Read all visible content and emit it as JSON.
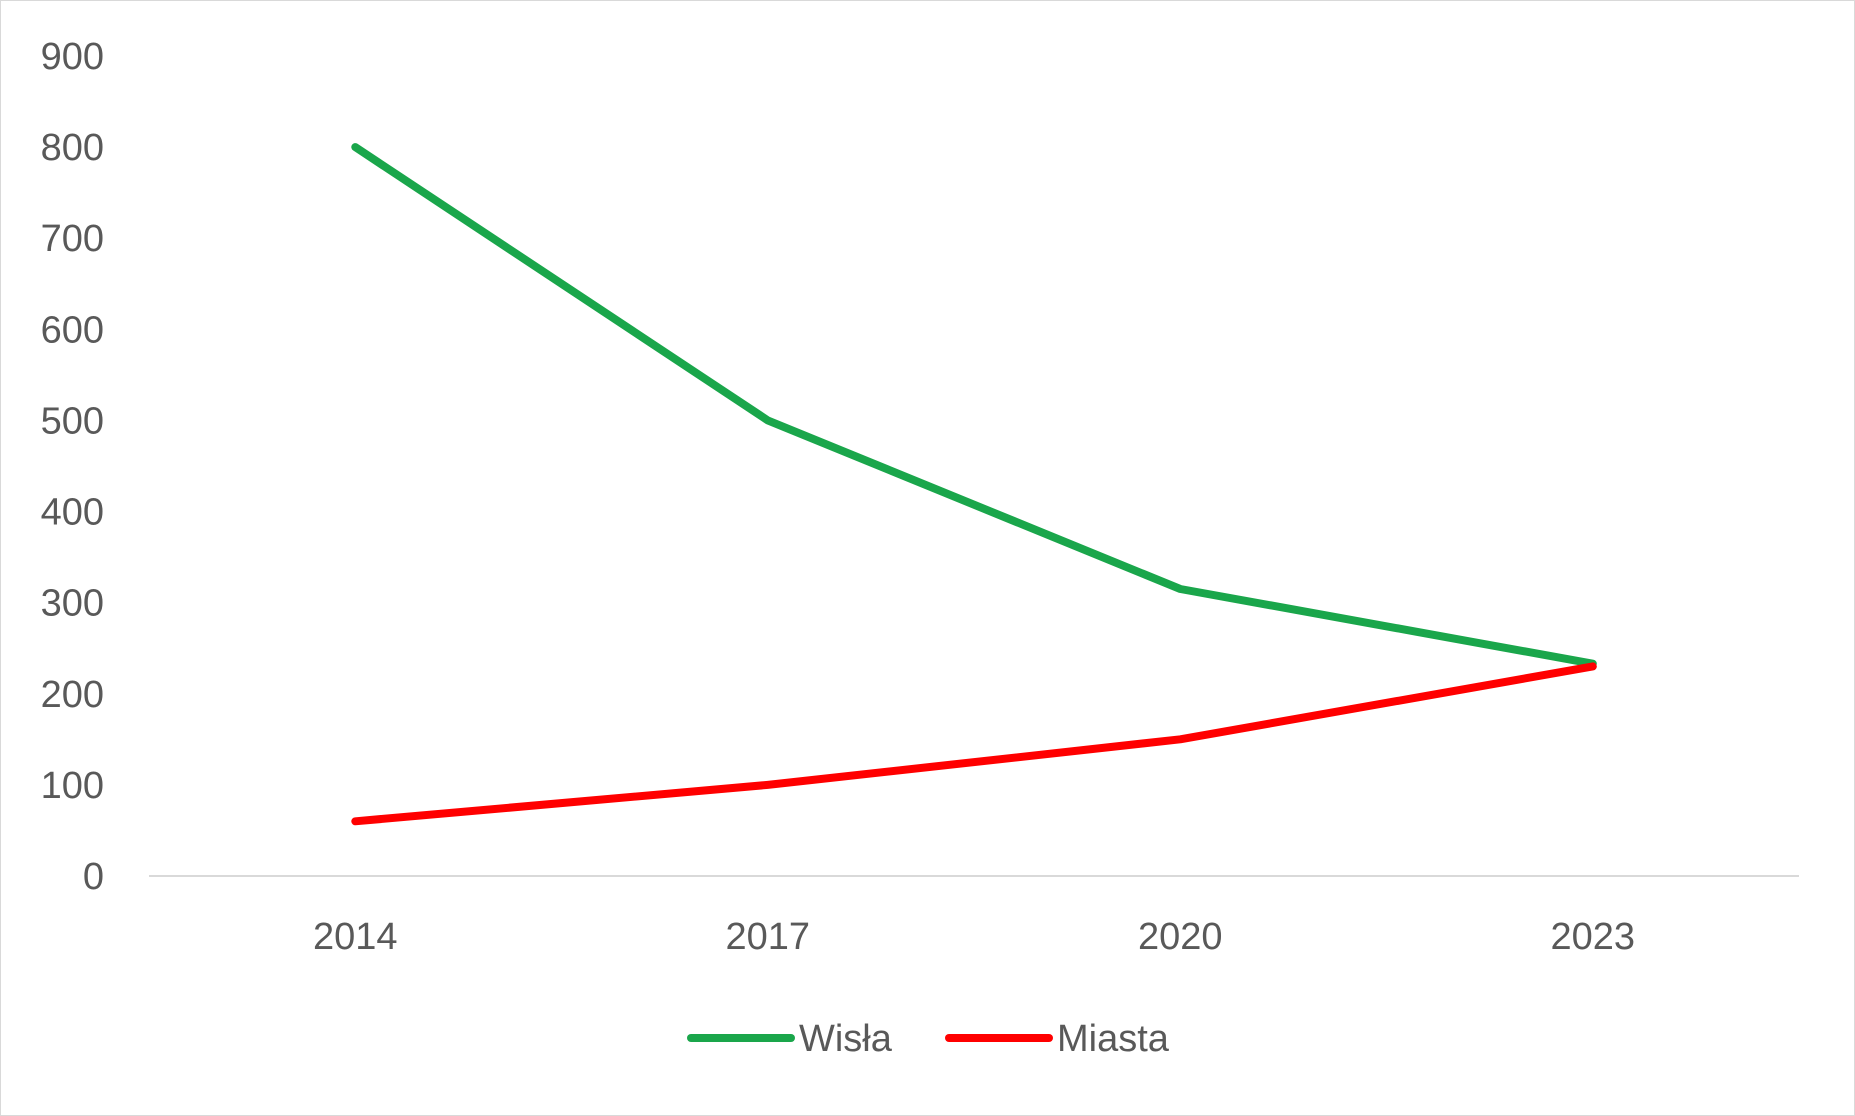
{
  "chart_data": {
    "type": "line",
    "title": "",
    "xlabel": "",
    "ylabel": "",
    "categories": [
      "2014",
      "2017",
      "2020",
      "2023"
    ],
    "series": [
      {
        "name": "Wisła",
        "color": "#1aa64b",
        "values": [
          800,
          500,
          315,
          233
        ]
      },
      {
        "name": "Miasta",
        "color": "#ff0000",
        "values": [
          60,
          100,
          150,
          230
        ]
      }
    ],
    "ylim": [
      0,
      900
    ],
    "y_ticks": [
      0,
      100,
      200,
      300,
      400,
      500,
      600,
      700,
      800,
      900
    ],
    "grid": false,
    "legend_position": "bottom",
    "axis_color": "#d9d9d9",
    "text_color": "#595959"
  }
}
